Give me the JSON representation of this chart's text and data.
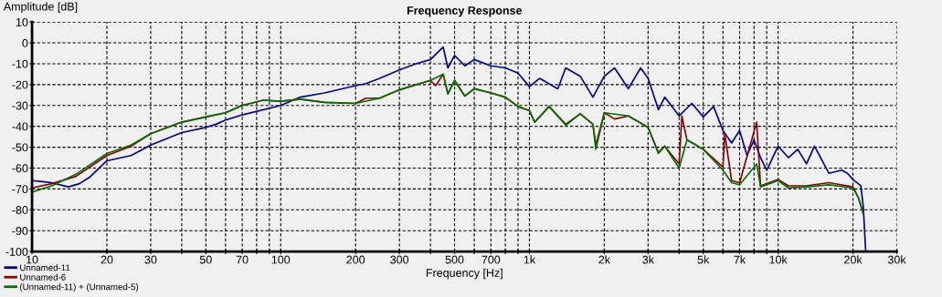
{
  "chart_data": {
    "type": "line",
    "title": "Frequency Response",
    "xlabel": "Frequency [Hz]",
    "ylabel": "Amplitude [dB]",
    "log": "x",
    "xlim": [
      10,
      30000
    ],
    "ylim": [
      -100,
      10
    ],
    "xticks": [
      10,
      20,
      30,
      {
        "value": 40,
        "label": null
      },
      50,
      {
        "value": 60,
        "label": null
      },
      70,
      {
        "value": 80,
        "label": null
      },
      {
        "value": 90,
        "label": null
      },
      100,
      200,
      300,
      {
        "value": 400,
        "label": null
      },
      500,
      {
        "value": 600,
        "label": null
      },
      700,
      {
        "value": 800,
        "label": null
      },
      {
        "value": 900,
        "label": null
      },
      {
        "value": 1000,
        "label": "1k"
      },
      {
        "value": 2000,
        "label": "2k"
      },
      {
        "value": 3000,
        "label": "3k"
      },
      {
        "value": 4000,
        "label": null
      },
      {
        "value": 5000,
        "label": "5k"
      },
      {
        "value": 6000,
        "label": null
      },
      {
        "value": 7000,
        "label": "7k"
      },
      {
        "value": 8000,
        "label": null
      },
      {
        "value": 9000,
        "label": null
      },
      {
        "value": 10000,
        "label": "10k"
      },
      {
        "value": 20000,
        "label": "20k"
      },
      {
        "value": 30000,
        "label": "30k"
      }
    ],
    "yticks": [
      -100,
      -90,
      -80,
      -70,
      -60,
      -50,
      -40,
      -30,
      -20,
      -10,
      0,
      10
    ],
    "grid": true,
    "legend": "bottom left",
    "line_style": "solid",
    "marker": "none",
    "series": [
      {
        "name": "Unnamed-11",
        "color": "#00008b",
        "x": [
          10,
          11,
          12,
          14,
          15.5,
          17,
          20,
          25,
          30,
          40,
          50,
          55,
          60,
          70,
          100,
          120,
          150,
          200,
          220,
          250,
          300,
          350,
          400,
          450,
          470,
          500,
          550,
          600,
          700,
          800,
          900,
          1000,
          1100,
          1300,
          1400,
          1600,
          1800,
          2000,
          2200,
          2500,
          2800,
          3000,
          3300,
          3500,
          4000,
          4500,
          5000,
          5500,
          6000,
          6500,
          7000,
          7500,
          8000,
          8500,
          9000,
          10000,
          11000,
          12000,
          13000,
          14000,
          16000,
          18000,
          19000,
          20000,
          21500,
          22000,
          22500
        ],
        "values": [
          -66,
          -66.5,
          -67,
          -69,
          -67.5,
          -64.5,
          -56.5,
          -54,
          -49,
          -43,
          -40.5,
          -39,
          -37,
          -34.5,
          -30,
          -26,
          -24,
          -20.5,
          -19.5,
          -17,
          -13,
          -10,
          -8,
          -2,
          -12,
          -6,
          -11,
          -8,
          -11,
          -12,
          -14.5,
          -21,
          -17,
          -22,
          -12,
          -16,
          -26,
          -16,
          -12,
          -22,
          -12,
          -17,
          -32,
          -26,
          -35,
          -29,
          -35.5,
          -30.5,
          -42,
          -48,
          -42,
          -54,
          -46.5,
          -55,
          -61,
          -49.5,
          -55,
          -51,
          -58,
          -49.5,
          -62.5,
          -61,
          -62.5,
          -65.5,
          -68.5,
          -78.5,
          -100
        ]
      },
      {
        "name": "Unnamed-6",
        "color": "#8b0000",
        "x": [
          10,
          12,
          15,
          20,
          25,
          30,
          40,
          50,
          60,
          70,
          85,
          100,
          120,
          150,
          200,
          220,
          250,
          300,
          400,
          420,
          450,
          470,
          500,
          550,
          600,
          700,
          800,
          900,
          1000,
          1050,
          1200,
          1400,
          1600,
          1800,
          1850,
          2000,
          2200,
          2500,
          3000,
          3300,
          3500,
          4000,
          4100,
          4300,
          5000,
          6000,
          6100,
          6500,
          7000,
          8200,
          8500,
          10000,
          11000,
          13000,
          16000,
          20000,
          21000,
          22000
        ],
        "values": [
          -69.5,
          -67.5,
          -64,
          -54,
          -49.5,
          -43.5,
          -38,
          -35.5,
          -33.5,
          -30,
          -27.5,
          -28,
          -27,
          -28.5,
          -29,
          -26.5,
          -26.5,
          -22.5,
          -18,
          -20.5,
          -15,
          -24.5,
          -18,
          -25.5,
          -22,
          -24,
          -26,
          -30.5,
          -32.5,
          -38,
          -30.5,
          -39,
          -34,
          -39,
          -49,
          -33.5,
          -36.5,
          -35,
          -40.5,
          -52.5,
          -49.5,
          -58,
          -35,
          -46.5,
          -51,
          -59.5,
          -43.5,
          -66,
          -67,
          -38,
          -68.5,
          -65.5,
          -68.5,
          -68.5,
          -67,
          -69,
          -74,
          -81.5
        ]
      },
      {
        "name": "(Unnamed-11) + (Unnamed-5)",
        "color": "#007000",
        "x": [
          10,
          12,
          15,
          20,
          25,
          30,
          40,
          50,
          60,
          70,
          85,
          100,
          120,
          150,
          200,
          250,
          300,
          400,
          450,
          470,
          500,
          550,
          600,
          700,
          800,
          900,
          1000,
          1050,
          1200,
          1400,
          1600,
          1800,
          1850,
          2000,
          2500,
          3000,
          3300,
          3500,
          4000,
          4300,
          5000,
          6000,
          6500,
          7000,
          8200,
          8500,
          10000,
          11000,
          13000,
          16000,
          20000,
          21000,
          22000
        ],
        "values": [
          -71.5,
          -68.5,
          -63,
          -53,
          -49,
          -43.5,
          -38,
          -35.5,
          -33.5,
          -30,
          -27.5,
          -28,
          -27,
          -28.5,
          -29,
          -26.5,
          -22.5,
          -18,
          -15,
          -24.5,
          -18,
          -25.5,
          -22,
          -24,
          -26,
          -30.5,
          -32.5,
          -38,
          -30.5,
          -39.5,
          -34,
          -39,
          -51,
          -33.5,
          -35,
          -40.5,
          -53,
          -49.5,
          -60,
          -46.5,
          -51,
          -61,
          -67,
          -68,
          -58,
          -69,
          -66,
          -69.5,
          -69,
          -68,
          -69.5,
          -74,
          -82
        ]
      }
    ]
  }
}
